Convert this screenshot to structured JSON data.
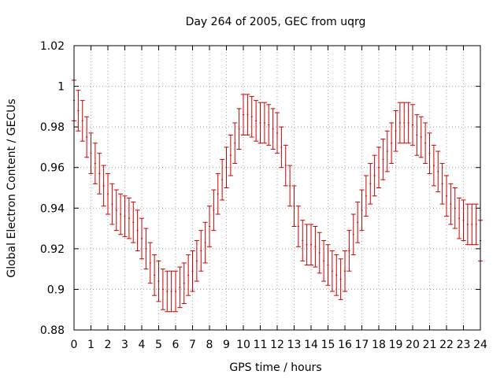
{
  "chart_data": {
    "type": "scatter",
    "title": "Day 264 of 2005, GEC from uqrg",
    "xlabel": "GPS time / hours",
    "ylabel": "Global Electron Content / GECUs",
    "xlim": [
      0,
      24
    ],
    "ylim": [
      0.88,
      1.02
    ],
    "x_ticks": [
      0,
      1,
      2,
      3,
      4,
      5,
      6,
      7,
      8,
      9,
      10,
      11,
      12,
      13,
      14,
      15,
      16,
      17,
      18,
      19,
      20,
      21,
      22,
      23,
      24
    ],
    "y_ticks": [
      0.88,
      0.9,
      0.92,
      0.94,
      0.96,
      0.98,
      1,
      1.02
    ],
    "y_tick_labels": [
      "0.88",
      "0.9",
      "0.92",
      "0.94",
      "0.96",
      "0.98",
      "1",
      "1.02"
    ],
    "grid": true,
    "errorbar_color": "#cc0000",
    "error": 0.01,
    "series": [
      {
        "x": [
          0,
          0.25,
          0.5,
          0.75,
          1,
          1.25,
          1.5,
          1.75,
          2,
          2.25,
          2.5,
          2.75,
          3,
          3.25,
          3.5,
          3.75,
          4,
          4.25,
          4.5,
          4.75,
          5,
          5.25,
          5.5,
          5.75,
          6,
          6.25,
          6.5,
          6.75,
          7,
          7.25,
          7.5,
          7.75,
          8,
          8.25,
          8.5,
          8.75,
          9,
          9.25,
          9.5,
          9.75,
          10,
          10.25,
          10.5,
          10.75,
          11,
          11.25,
          11.5,
          11.75,
          12,
          12.25,
          12.5,
          12.75,
          13,
          13.25,
          13.5,
          13.75,
          14,
          14.25,
          14.5,
          14.75,
          15,
          15.25,
          15.5,
          15.75,
          16,
          16.25,
          16.5,
          16.75,
          17,
          17.25,
          17.5,
          17.75,
          18,
          18.25,
          18.5,
          18.75,
          19,
          19.25,
          19.5,
          19.75,
          20,
          20.25,
          20.5,
          20.75,
          21,
          21.25,
          21.5,
          21.75,
          22,
          22.25,
          22.5,
          22.75,
          23,
          23.25,
          23.5,
          23.75,
          24
        ],
        "y": [
          0.993,
          0.988,
          0.983,
          0.975,
          0.967,
          0.962,
          0.957,
          0.951,
          0.947,
          0.942,
          0.939,
          0.937,
          0.936,
          0.935,
          0.933,
          0.929,
          0.925,
          0.92,
          0.913,
          0.907,
          0.904,
          0.9,
          0.899,
          0.899,
          0.899,
          0.901,
          0.903,
          0.907,
          0.909,
          0.914,
          0.919,
          0.923,
          0.931,
          0.939,
          0.947,
          0.954,
          0.96,
          0.966,
          0.972,
          0.979,
          0.986,
          0.986,
          0.985,
          0.983,
          0.982,
          0.982,
          0.981,
          0.979,
          0.977,
          0.97,
          0.961,
          0.951,
          0.941,
          0.931,
          0.924,
          0.922,
          0.922,
          0.921,
          0.918,
          0.914,
          0.912,
          0.909,
          0.907,
          0.905,
          0.909,
          0.919,
          0.927,
          0.933,
          0.939,
          0.946,
          0.952,
          0.956,
          0.96,
          0.964,
          0.968,
          0.972,
          0.978,
          0.982,
          0.982,
          0.982,
          0.981,
          0.976,
          0.975,
          0.972,
          0.967,
          0.961,
          0.958,
          0.952,
          0.946,
          0.942,
          0.94,
          0.935,
          0.934,
          0.932,
          0.932,
          0.932,
          0.924
        ]
      }
    ]
  }
}
